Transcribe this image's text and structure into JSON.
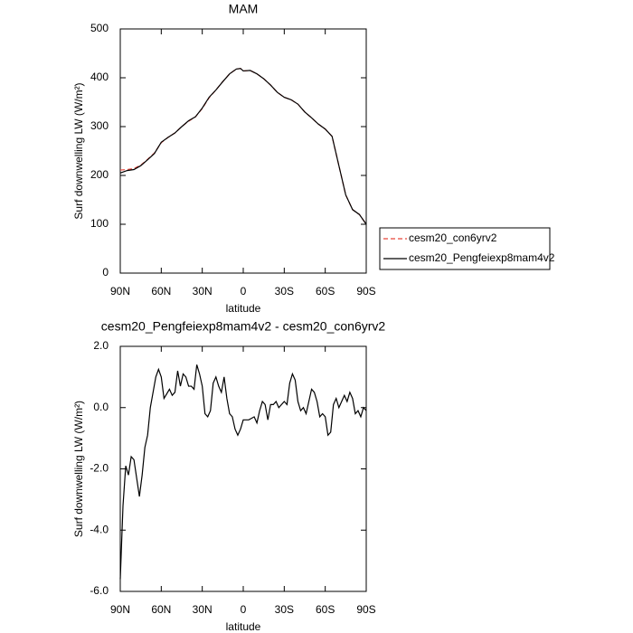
{
  "chart_data": [
    {
      "type": "line",
      "title": "MAM",
      "x_label": "latitude",
      "y_label": "Surf downwelling LW (W/m²)",
      "x": [
        90,
        85,
        80,
        75,
        70,
        65,
        60,
        55,
        50,
        45,
        40,
        35,
        30,
        25,
        20,
        15,
        10,
        5,
        2,
        0,
        -5,
        -10,
        -15,
        -20,
        -25,
        -30,
        -35,
        -40,
        -45,
        -50,
        -55,
        -60,
        -65,
        -70,
        -75,
        -80,
        -85,
        -90
      ],
      "series": [
        {
          "name": "cesm20_con6yrv2",
          "color": "#e8463a",
          "dash": "dashed",
          "values": [
            211,
            212,
            214,
            221,
            233,
            246,
            267,
            278,
            287,
            300,
            311,
            320,
            337,
            359,
            375,
            392,
            408,
            418,
            419,
            414,
            415,
            408,
            398,
            385,
            370,
            360,
            355,
            346,
            330,
            318,
            305,
            295,
            280,
            220,
            160,
            130,
            120,
            100
          ]
        },
        {
          "name": "cesm20_Pengfeiexp8mam4v2",
          "color": "#000000",
          "dash": "solid",
          "values": [
            205,
            210,
            212,
            220,
            232,
            245,
            268,
            278,
            287,
            300,
            312,
            320,
            338,
            360,
            375,
            392,
            408,
            418,
            419,
            414,
            415,
            408,
            398,
            385,
            370,
            360,
            355,
            346,
            330,
            318,
            305,
            295,
            280,
            220,
            160,
            130,
            120,
            100
          ]
        }
      ],
      "xlim": [
        90,
        -90
      ],
      "xticks": [
        {
          "value": 90,
          "label": "90N"
        },
        {
          "value": 60,
          "label": "60N"
        },
        {
          "value": 30,
          "label": "30N"
        },
        0,
        {
          "value": -30,
          "label": "30S"
        },
        {
          "value": -60,
          "label": "60S"
        },
        {
          "value": -90,
          "label": "90S"
        }
      ],
      "ylim": [
        0,
        500
      ],
      "yticks": [
        0,
        100,
        200,
        300,
        400,
        500
      ],
      "legend": "right"
    },
    {
      "type": "line",
      "title": "cesm20_Pengfeiexp8mam4v2 - cesm20_con6yrv2",
      "x_label": "latitude",
      "y_label": "Surf downwelling LW (W/m²)",
      "x": [
        90,
        88,
        86,
        84,
        82,
        80,
        78,
        76,
        74,
        72,
        70,
        68,
        66,
        64,
        62,
        60,
        58,
        56,
        54,
        52,
        50,
        48,
        46,
        44,
        42,
        40,
        38,
        36,
        34,
        32,
        30,
        28,
        26,
        24,
        22,
        20,
        18,
        16,
        14,
        12,
        10,
        8,
        6,
        4,
        2,
        0,
        -2,
        -4,
        -6,
        -8,
        -10,
        -12,
        -14,
        -16,
        -18,
        -20,
        -22,
        -24,
        -26,
        -28,
        -30,
        -32,
        -34,
        -36,
        -38,
        -40,
        -42,
        -44,
        -46,
        -48,
        -50,
        -52,
        -54,
        -56,
        -58,
        -60,
        -62,
        -64,
        -66,
        -68,
        -70,
        -72,
        -74,
        -76,
        -78,
        -80,
        -82,
        -84,
        -86,
        -88,
        -90
      ],
      "series": [
        {
          "name": null,
          "color": "#000000",
          "dash": "solid",
          "values": [
            -5.6,
            -3.2,
            -1.9,
            -2.2,
            -1.6,
            -1.7,
            -2.3,
            -2.9,
            -2.2,
            -1.3,
            -0.9,
            0.0,
            0.5,
            1.0,
            1.25,
            1.0,
            0.3,
            0.45,
            0.6,
            0.4,
            0.5,
            1.2,
            0.7,
            1.1,
            1.0,
            0.7,
            0.7,
            0.6,
            1.4,
            1.1,
            0.7,
            -0.2,
            -0.3,
            -0.1,
            0.8,
            1.0,
            0.7,
            0.5,
            1.0,
            0.3,
            -0.2,
            -0.3,
            -0.7,
            -0.9,
            -0.7,
            -0.4,
            -0.4,
            -0.4,
            -0.35,
            -0.3,
            -0.5,
            -0.1,
            0.2,
            0.1,
            -0.4,
            0.1,
            0.1,
            0.2,
            0.0,
            0.1,
            0.2,
            0.1,
            0.8,
            1.1,
            0.9,
            0.2,
            -0.1,
            0.0,
            -0.2,
            0.2,
            0.6,
            0.5,
            0.2,
            -0.3,
            -0.2,
            -0.3,
            -0.9,
            -0.8,
            0.1,
            0.3,
            0.0,
            0.2,
            0.4,
            0.2,
            0.5,
            0.3,
            -0.2,
            -0.1,
            -0.3,
            0.0,
            -0.1
          ]
        }
      ],
      "xlim": [
        90,
        -90
      ],
      "xticks": [
        {
          "value": 90,
          "label": "90N"
        },
        {
          "value": 60,
          "label": "60N"
        },
        {
          "value": 30,
          "label": "30N"
        },
        0,
        {
          "value": -30,
          "label": "30S"
        },
        {
          "value": -60,
          "label": "60S"
        },
        {
          "value": -90,
          "label": "90S"
        }
      ],
      "ylim": [
        -6,
        2
      ],
      "yticks": [
        {
          "value": -6,
          "label": "-6.0"
        },
        {
          "value": -4,
          "label": "-4.0"
        },
        {
          "value": -2,
          "label": "-2.0"
        },
        {
          "value": 0,
          "label": "0.0"
        },
        {
          "value": 2,
          "label": "2.0"
        }
      ]
    }
  ]
}
